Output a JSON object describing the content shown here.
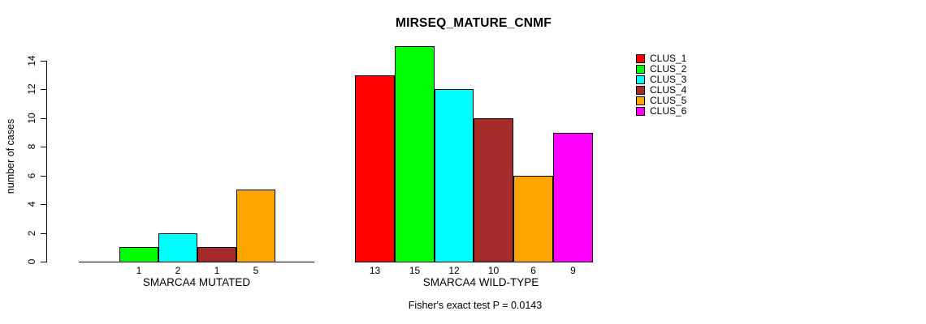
{
  "title": "MIRSEQ_MATURE_CNMF",
  "footnote": "Fisher's exact test P = 0.0143",
  "axes": {
    "ylabel": "number of cases",
    "y_ticks": [
      0,
      2,
      4,
      6,
      8,
      10,
      12,
      14
    ]
  },
  "legend": {
    "items": [
      {
        "label": "CLUS_1",
        "color": "#FF0000"
      },
      {
        "label": "CLUS_2",
        "color": "#00FF00"
      },
      {
        "label": "CLUS_3",
        "color": "#00FFFF"
      },
      {
        "label": "CLUS_4",
        "color": "#A52A2A"
      },
      {
        "label": "CLUS_5",
        "color": "#FFA500"
      },
      {
        "label": "CLUS_6",
        "color": "#FF00FF"
      }
    ]
  },
  "chart_data": {
    "type": "bar",
    "title": "MIRSEQ_MATURE_CNMF",
    "ylabel": "number of cases",
    "ylim": [
      0,
      15
    ],
    "y_ticks": [
      0,
      2,
      4,
      6,
      8,
      10,
      12,
      14
    ],
    "grid": false,
    "legend_position": "top-right",
    "annotation": "Fisher's exact test P = 0.0143",
    "groups": [
      {
        "label": "SMARCA4 MUTATED",
        "bars": [
          {
            "cluster": "CLUS_2",
            "value": 1,
            "color": "#00FF00"
          },
          {
            "cluster": "CLUS_3",
            "value": 2,
            "color": "#00FFFF"
          },
          {
            "cluster": "CLUS_4",
            "value": 1,
            "color": "#A52A2A"
          },
          {
            "cluster": "CLUS_5",
            "value": 5,
            "color": "#FFA500"
          }
        ]
      },
      {
        "label": "SMARCA4 WILD-TYPE",
        "bars": [
          {
            "cluster": "CLUS_1",
            "value": 13,
            "color": "#FF0000"
          },
          {
            "cluster": "CLUS_2",
            "value": 15,
            "color": "#00FF00"
          },
          {
            "cluster": "CLUS_3",
            "value": 12,
            "color": "#00FFFF"
          },
          {
            "cluster": "CLUS_4",
            "value": 10,
            "color": "#A52A2A"
          },
          {
            "cluster": "CLUS_5",
            "value": 6,
            "color": "#FFA500"
          },
          {
            "cluster": "CLUS_6",
            "value": 9,
            "color": "#FF00FF"
          }
        ]
      }
    ]
  }
}
